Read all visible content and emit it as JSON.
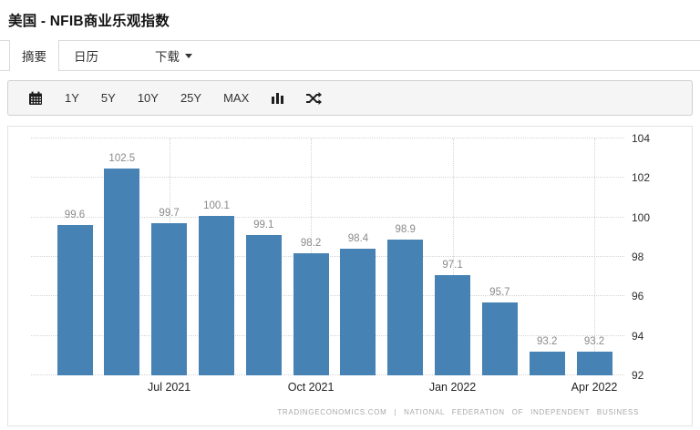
{
  "header": {
    "title": "美国 - NFIB商业乐观指数"
  },
  "tabs": {
    "summary": "摘要",
    "calendar": "日历",
    "download": "下载"
  },
  "toolbar": {
    "ranges": [
      "1Y",
      "5Y",
      "10Y",
      "25Y",
      "MAX"
    ],
    "icons": [
      "calendar-icon",
      "column-chart-icon",
      "compare-shuffle-icon"
    ]
  },
  "chart_data": {
    "type": "bar",
    "title": "美国 - NFIB商业乐观指数",
    "values": [
      99.6,
      102.5,
      99.7,
      100.1,
      99.1,
      98.2,
      98.4,
      98.9,
      97.1,
      95.7,
      93.2,
      93.2
    ],
    "bar_labels": [
      "99.6",
      "102.5",
      "99.7",
      "100.1",
      "99.1",
      "98.2",
      "98.4",
      "98.9",
      "97.1",
      "95.7",
      "93.2",
      "93.2"
    ],
    "x_tick_labels": [
      "Jul 2021",
      "Oct 2021",
      "Jan 2022",
      "Apr 2022"
    ],
    "x_tick_bar_indices": [
      2,
      5,
      8,
      11
    ],
    "y_ticks": [
      92,
      94,
      96,
      98,
      100,
      102,
      104
    ],
    "ylim": [
      92,
      104
    ],
    "y_axis_side": "right",
    "grid_style": "dotted",
    "legend": "none",
    "colors": {
      "bar": "#4682b4",
      "value_label": "#8a8a8a",
      "axis_label": "#2e2e2e",
      "grid": "#d4d4d4"
    },
    "attribution": "TRADINGECONOMICS.COM | NATIONAL FEDERATION OF INDEPENDENT BUSINESS"
  }
}
